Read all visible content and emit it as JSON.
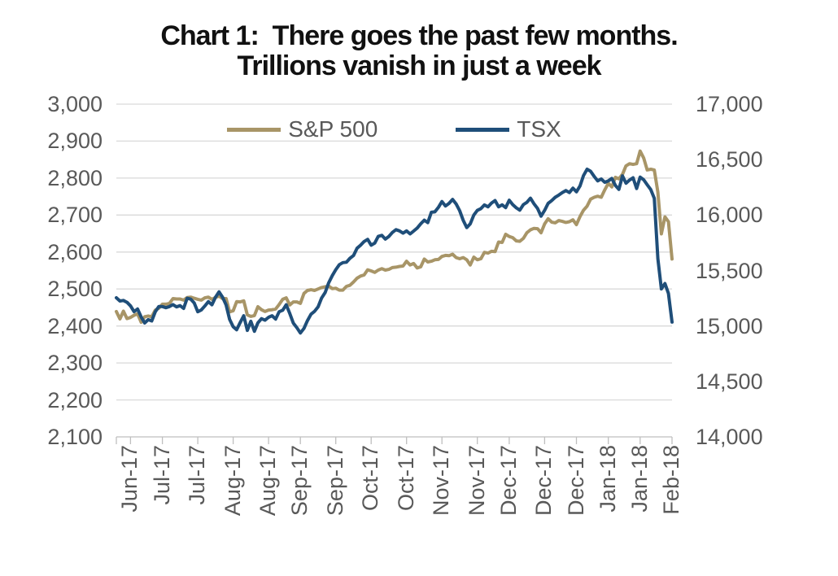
{
  "title": {
    "line1": "Chart 1:  There goes the past few months.",
    "line2": "Trillions vanish in just a week"
  },
  "legend": [
    {
      "label": "S&P 500",
      "color": "#a89567"
    },
    {
      "label": "TSX",
      "color": "#1f4e79"
    }
  ],
  "colors": {
    "sp500": "#a89567",
    "tsx": "#1f4e79",
    "gridline": "#d9d9d9",
    "axis": "#bfbfbf",
    "tick_text": "#595959",
    "title_text": "#111111"
  },
  "chart_data": {
    "type": "line",
    "title": "Chart 1: There goes the past few months. Trillions vanish in just a week",
    "legend_position": "top",
    "grid": "horizontal",
    "x_tick_labels": [
      "Jun-17",
      "Jul-17",
      "Jul-17",
      "Aug-17",
      "Aug-17",
      "Sep-17",
      "Sep-17",
      "Oct-17",
      "Oct-17",
      "Nov-17",
      "Nov-17",
      "Dec-17",
      "Dec-17",
      "Dec-17",
      "Jan-18",
      "Jan-18",
      "Feb-18"
    ],
    "x_tick_indices": [
      4,
      13,
      23,
      33,
      43,
      52,
      62,
      72,
      82,
      92,
      102,
      111,
      121,
      130,
      139,
      148,
      157
    ],
    "y_left": {
      "min": 2100,
      "max": 3000,
      "step": 100,
      "tick_labels": [
        "3,000",
        "2,900",
        "2,800",
        "2,700",
        "2,600",
        "2,500",
        "2,400",
        "2,300",
        "2,200",
        "2,100"
      ]
    },
    "y_right": {
      "min": 14000,
      "max": 17000,
      "step": 500,
      "tick_labels": [
        "17,000",
        "16,500",
        "16,000",
        "15,500",
        "15,000",
        "14,500",
        "14,000"
      ]
    },
    "series": [
      {
        "name": "S&P 500",
        "axis": "left",
        "color": "#a89567",
        "values": [
          2439,
          2419,
          2440,
          2420,
          2423,
          2429,
          2433,
          2410,
          2425,
          2427,
          2425,
          2443,
          2448,
          2459,
          2459,
          2461,
          2474,
          2473,
          2473,
          2470,
          2477,
          2478,
          2475,
          2472,
          2470,
          2476,
          2478,
          2472,
          2477,
          2481,
          2474,
          2474,
          2438,
          2441,
          2466,
          2465,
          2468,
          2430,
          2426,
          2428,
          2452,
          2444,
          2439,
          2443,
          2444,
          2446,
          2458,
          2472,
          2476,
          2457,
          2465,
          2465,
          2461,
          2488,
          2496,
          2498,
          2496,
          2500,
          2504,
          2506,
          2508,
          2501,
          2502,
          2497,
          2497,
          2507,
          2510,
          2519,
          2529,
          2535,
          2538,
          2552,
          2549,
          2545,
          2551,
          2555,
          2551,
          2553,
          2558,
          2559,
          2561,
          2562,
          2575,
          2565,
          2569,
          2557,
          2560,
          2581,
          2573,
          2575,
          2579,
          2580,
          2588,
          2591,
          2590,
          2594,
          2585,
          2582,
          2585,
          2579,
          2565,
          2586,
          2579,
          2582,
          2599,
          2597,
          2602,
          2601,
          2627,
          2626,
          2648,
          2642,
          2639,
          2630,
          2629,
          2637,
          2652,
          2660,
          2664,
          2663,
          2652,
          2676,
          2690,
          2681,
          2679,
          2685,
          2683,
          2680,
          2682,
          2687,
          2674,
          2696,
          2713,
          2724,
          2743,
          2748,
          2751,
          2748,
          2768,
          2786,
          2776,
          2802,
          2798,
          2810,
          2833,
          2839,
          2837,
          2839,
          2873,
          2854,
          2822,
          2824,
          2822,
          2762,
          2649,
          2695,
          2682,
          2581
        ]
      },
      {
        "name": "TSX",
        "axis": "right",
        "color": "#1f4e79",
        "values": [
          15254,
          15225,
          15230,
          15213,
          15182,
          15129,
          15153,
          15081,
          15027,
          15057,
          15045,
          15129,
          15175,
          15175,
          15165,
          15175,
          15193,
          15172,
          15183,
          15158,
          15250,
          15242,
          15207,
          15128,
          15144,
          15180,
          15220,
          15191,
          15258,
          15308,
          15260,
          15190,
          15060,
          14993,
          14966,
          15032,
          15092,
          14960,
          15042,
          14952,
          15028,
          15066,
          15052,
          15078,
          15092,
          15062,
          15128,
          15142,
          15191,
          15112,
          15026,
          14984,
          14937,
          14978,
          15048,
          15106,
          15132,
          15173,
          15252,
          15302,
          15389,
          15454,
          15507,
          15553,
          15571,
          15575,
          15610,
          15635,
          15700,
          15728,
          15761,
          15781,
          15728,
          15747,
          15807,
          15817,
          15783,
          15807,
          15843,
          15868,
          15857,
          15837,
          15857,
          15830,
          15856,
          15883,
          15921,
          15954,
          15932,
          16025,
          16029,
          16070,
          16122,
          16082,
          16105,
          16141,
          16101,
          16039,
          15953,
          15887,
          15921,
          16000,
          16042,
          16058,
          16091,
          16074,
          16108,
          16131,
          16074,
          16092,
          16067,
          16134,
          16094,
          16065,
          16044,
          16094,
          16115,
          16152,
          16102,
          16060,
          15990,
          16042,
          16105,
          16130,
          16160,
          16180,
          16203,
          16221,
          16203,
          16242,
          16209,
          16262,
          16356,
          16413,
          16395,
          16349,
          16308,
          16325,
          16295,
          16308,
          16330,
          16267,
          16231,
          16353,
          16287,
          16316,
          16336,
          16239,
          16342,
          16318,
          16273,
          16229,
          16151,
          15606,
          15334,
          15383,
          15293,
          15035
        ]
      }
    ]
  }
}
